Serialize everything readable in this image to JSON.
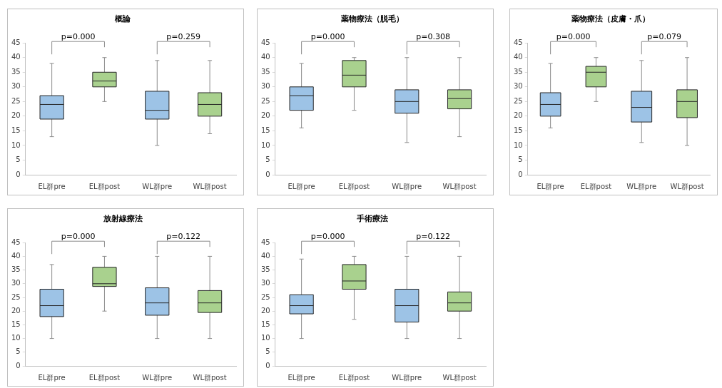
{
  "chart_data": [
    {
      "type": "box",
      "title": "概論",
      "categories": [
        "EL群pre",
        "EL群post",
        "WL群pre",
        "WL群post"
      ],
      "colors": [
        "#9dc3e6",
        "#a9d18e",
        "#9dc3e6",
        "#a9d18e"
      ],
      "ylim": [
        0,
        45
      ],
      "yticks": [
        0,
        5,
        10,
        15,
        20,
        25,
        30,
        35,
        40,
        45
      ],
      "annotations": [
        "p=0.000",
        "p=0.259"
      ],
      "boxes": [
        {
          "low": 13,
          "q1": 19,
          "median": 24,
          "q3": 27,
          "high": 38
        },
        {
          "low": 25,
          "q1": 30,
          "median": 32,
          "q3": 35,
          "high": 40
        },
        {
          "low": 10,
          "q1": 19,
          "median": 22,
          "q3": 28.5,
          "high": 39
        },
        {
          "low": 14,
          "q1": 20,
          "median": 24,
          "q3": 28,
          "high": 39
        }
      ]
    },
    {
      "type": "box",
      "title": "薬物療法（脱毛）",
      "categories": [
        "EL群pre",
        "EL群post",
        "WL群pre",
        "WL群post"
      ],
      "colors": [
        "#9dc3e6",
        "#a9d18e",
        "#9dc3e6",
        "#a9d18e"
      ],
      "ylim": [
        0,
        45
      ],
      "yticks": [
        0,
        5,
        10,
        15,
        20,
        25,
        30,
        35,
        40,
        45
      ],
      "annotations": [
        "p=0.000",
        "p=0.308"
      ],
      "boxes": [
        {
          "low": 16,
          "q1": 22,
          "median": 27,
          "q3": 30,
          "high": 38
        },
        {
          "low": 22,
          "q1": 30,
          "median": 34,
          "q3": 39,
          "high": 40
        },
        {
          "low": 11,
          "q1": 21,
          "median": 25,
          "q3": 29,
          "high": 40
        },
        {
          "low": 13,
          "q1": 22.5,
          "median": 26,
          "q3": 29,
          "high": 40
        }
      ]
    },
    {
      "type": "box",
      "title": "薬物療法（皮膚・爪）",
      "categories": [
        "EL群pre",
        "EL群post",
        "WL群pre",
        "WL群post"
      ],
      "colors": [
        "#9dc3e6",
        "#a9d18e",
        "#9dc3e6",
        "#a9d18e"
      ],
      "ylim": [
        0,
        45
      ],
      "yticks": [
        0,
        5,
        10,
        15,
        20,
        25,
        30,
        35,
        40,
        45
      ],
      "annotations": [
        "p=0.000",
        "p=0.079"
      ],
      "boxes": [
        {
          "low": 16,
          "q1": 20,
          "median": 24,
          "q3": 28,
          "high": 38
        },
        {
          "low": 25,
          "q1": 30,
          "median": 35,
          "q3": 37,
          "high": 40
        },
        {
          "low": 11,
          "q1": 18,
          "median": 23,
          "q3": 28.5,
          "high": 39
        },
        {
          "low": 10,
          "q1": 19.5,
          "median": 25,
          "q3": 29,
          "high": 40
        }
      ]
    },
    {
      "type": "box",
      "title": "放射線療法",
      "categories": [
        "EL群pre",
        "EL群post",
        "WL群pre",
        "WL群post"
      ],
      "colors": [
        "#9dc3e6",
        "#a9d18e",
        "#9dc3e6",
        "#a9d18e"
      ],
      "ylim": [
        0,
        45
      ],
      "yticks": [
        0,
        5,
        10,
        15,
        20,
        25,
        30,
        35,
        40,
        45
      ],
      "annotations": [
        "p=0.000",
        "p=0.122"
      ],
      "boxes": [
        {
          "low": 10,
          "q1": 18,
          "median": 22,
          "q3": 28,
          "high": 37
        },
        {
          "low": 20,
          "q1": 29,
          "median": 30,
          "q3": 36,
          "high": 40
        },
        {
          "low": 10,
          "q1": 18.5,
          "median": 23,
          "q3": 28.5,
          "high": 40
        },
        {
          "low": 10,
          "q1": 19.5,
          "median": 23,
          "q3": 27.5,
          "high": 40
        }
      ]
    },
    {
      "type": "box",
      "title": "手術療法",
      "categories": [
        "EL群pre",
        "EL群post",
        "WL群pre",
        "WL群post"
      ],
      "colors": [
        "#9dc3e6",
        "#a9d18e",
        "#9dc3e6",
        "#a9d18e"
      ],
      "ylim": [
        0,
        45
      ],
      "yticks": [
        0,
        5,
        10,
        15,
        20,
        25,
        30,
        35,
        40,
        45
      ],
      "annotations": [
        "p=0.000",
        "p=0.122"
      ],
      "boxes": [
        {
          "low": 10,
          "q1": 19,
          "median": 22,
          "q3": 26,
          "high": 39
        },
        {
          "low": 17,
          "q1": 28,
          "median": 31,
          "q3": 37,
          "high": 40
        },
        {
          "low": 10,
          "q1": 16,
          "median": 22,
          "q3": 28,
          "high": 40
        },
        {
          "low": 10,
          "q1": 20,
          "median": 23,
          "q3": 27,
          "high": 40
        }
      ]
    }
  ]
}
